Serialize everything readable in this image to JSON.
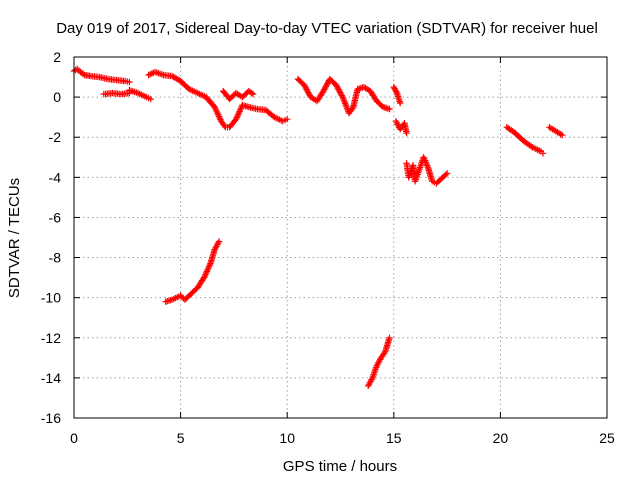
{
  "chart_data": {
    "type": "scatter",
    "title": "Day 019 of 2017, Sidereal Day-to-day VTEC variation (SDTVAR) for receiver huel",
    "xlabel": "GPS time / hours",
    "ylabel": "SDTVAR / TECUs",
    "xlim": [
      0,
      25
    ],
    "ylim": [
      -16,
      2
    ],
    "xticks": [
      "0",
      "5",
      "10",
      "15",
      "20",
      "25"
    ],
    "yticks": [
      "2",
      "0",
      "-2",
      "-4",
      "-6",
      "-8",
      "-10",
      "-12",
      "-14",
      "-16"
    ],
    "grid": true,
    "marker": "plus",
    "color": "#ff0000",
    "segments": [
      {
        "points": [
          [
            0.0,
            1.3
          ],
          [
            0.15,
            1.4
          ],
          [
            0.3,
            1.25
          ],
          [
            0.5,
            1.1
          ],
          [
            0.8,
            1.05
          ],
          [
            1.2,
            1.0
          ],
          [
            1.6,
            0.9
          ],
          [
            2.0,
            0.85
          ],
          [
            2.4,
            0.8
          ],
          [
            2.6,
            0.75
          ]
        ]
      },
      {
        "points": [
          [
            1.4,
            0.15
          ],
          [
            1.8,
            0.2
          ],
          [
            2.2,
            0.15
          ],
          [
            2.6,
            0.2
          ]
        ]
      },
      {
        "points": [
          [
            2.6,
            0.35
          ],
          [
            3.0,
            0.2
          ],
          [
            3.4,
            0.0
          ],
          [
            3.6,
            -0.1
          ]
        ]
      },
      {
        "points": [
          [
            3.5,
            1.1
          ],
          [
            3.8,
            1.25
          ],
          [
            4.2,
            1.1
          ],
          [
            4.6,
            1.05
          ],
          [
            5.0,
            0.8
          ],
          [
            5.4,
            0.4
          ],
          [
            5.8,
            0.2
          ],
          [
            6.2,
            0.0
          ],
          [
            6.6,
            -0.5
          ],
          [
            6.9,
            -1.2
          ],
          [
            7.1,
            -1.5
          ],
          [
            7.3,
            -1.5
          ],
          [
            7.6,
            -1.1
          ],
          [
            7.9,
            -0.4
          ],
          [
            8.2,
            -0.5
          ],
          [
            8.6,
            -0.6
          ],
          [
            9.0,
            -0.65
          ],
          [
            9.4,
            -1.0
          ],
          [
            9.8,
            -1.2
          ],
          [
            10.0,
            -1.1
          ]
        ]
      },
      {
        "points": [
          [
            7.0,
            0.3
          ],
          [
            7.3,
            -0.1
          ],
          [
            7.6,
            0.2
          ],
          [
            7.9,
            0.0
          ],
          [
            8.2,
            0.3
          ],
          [
            8.4,
            0.15
          ]
        ]
      },
      {
        "points": [
          [
            10.5,
            0.9
          ],
          [
            10.8,
            0.6
          ],
          [
            11.1,
            0.0
          ],
          [
            11.4,
            -0.2
          ],
          [
            11.7,
            0.3
          ],
          [
            12.0,
            0.9
          ],
          [
            12.3,
            0.6
          ],
          [
            12.6,
            0.0
          ],
          [
            12.9,
            -0.8
          ],
          [
            13.1,
            -0.5
          ],
          [
            13.3,
            0.4
          ],
          [
            13.6,
            0.5
          ],
          [
            13.9,
            0.3
          ],
          [
            14.2,
            -0.2
          ],
          [
            14.5,
            -0.5
          ],
          [
            14.8,
            -0.6
          ]
        ]
      },
      {
        "points": [
          [
            15.0,
            0.5
          ],
          [
            15.15,
            0.2
          ],
          [
            15.3,
            -0.3
          ]
        ]
      },
      {
        "points": [
          [
            15.1,
            -1.2
          ],
          [
            15.3,
            -1.6
          ],
          [
            15.5,
            -1.3
          ],
          [
            15.6,
            -1.8
          ]
        ]
      },
      {
        "points": [
          [
            15.6,
            -3.3
          ],
          [
            15.7,
            -4.0
          ],
          [
            15.9,
            -3.4
          ],
          [
            16.0,
            -4.2
          ],
          [
            16.2,
            -3.6
          ],
          [
            16.4,
            -3.0
          ],
          [
            16.6,
            -3.5
          ],
          [
            16.8,
            -4.2
          ],
          [
            17.0,
            -4.3
          ],
          [
            17.3,
            -4.0
          ],
          [
            17.5,
            -3.8
          ]
        ]
      },
      {
        "points": [
          [
            20.3,
            -1.5
          ],
          [
            20.7,
            -1.8
          ],
          [
            21.1,
            -2.2
          ],
          [
            21.5,
            -2.5
          ],
          [
            21.9,
            -2.7
          ],
          [
            22.0,
            -2.8
          ]
        ]
      },
      {
        "points": [
          [
            22.3,
            -1.5
          ],
          [
            22.6,
            -1.7
          ],
          [
            22.9,
            -1.9
          ]
        ]
      },
      {
        "points": [
          [
            4.3,
            -10.2
          ],
          [
            4.6,
            -10.1
          ],
          [
            5.0,
            -9.9
          ],
          [
            5.2,
            -10.1
          ],
          [
            5.5,
            -9.8
          ],
          [
            5.8,
            -9.5
          ],
          [
            6.1,
            -9.0
          ],
          [
            6.4,
            -8.3
          ],
          [
            6.6,
            -7.6
          ],
          [
            6.8,
            -7.2
          ]
        ]
      },
      {
        "points": [
          [
            13.8,
            -14.4
          ],
          [
            14.0,
            -14.0
          ],
          [
            14.2,
            -13.4
          ],
          [
            14.4,
            -13.0
          ],
          [
            14.6,
            -12.7
          ],
          [
            14.8,
            -12.0
          ]
        ]
      }
    ]
  }
}
